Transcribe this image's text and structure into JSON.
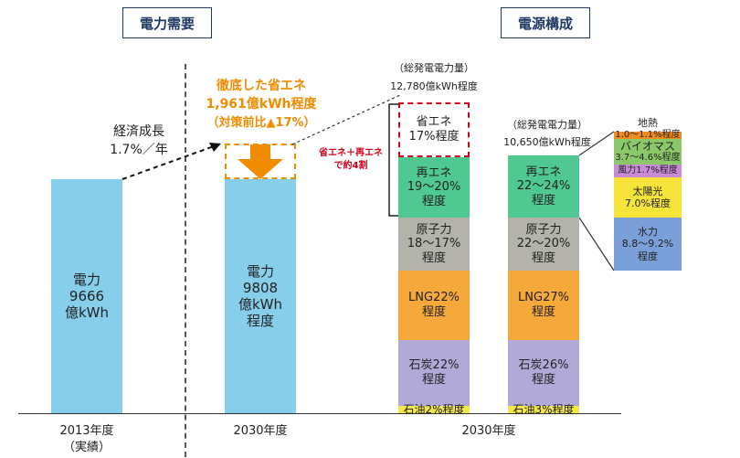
{
  "headers": {
    "demand": "電力需要",
    "supply": "電源構成"
  },
  "demand": {
    "growth_line1": "経済成長",
    "growth_line2": "1.7%／年",
    "bar2013": [
      "電力",
      "9666",
      "億kWh"
    ],
    "bar2030": [
      "電力",
      "9808",
      "億kWh",
      "程度"
    ],
    "savings_line1": "徹底した省エネ",
    "savings_line2": "1,961億kWh程度",
    "savings_line3": "（対策前比▲17%）",
    "colors": {
      "bar": "#87ceeb",
      "savings": "#f08c00"
    }
  },
  "supply": {
    "total_before_label": "（総発電電力量）",
    "total_before_value": "12,780億kWh程度",
    "total_after_label": "（総発電電力量）",
    "total_after_value": "10,650億kWh程度",
    "renewables_saving_line1": "省エネ＋再エネ",
    "renewables_saving_line2": "で約4割",
    "stack_before": [
      {
        "key": "savings",
        "lines": [
          "省エネ",
          "17%程度"
        ]
      },
      {
        "key": "renewable",
        "lines": [
          "再エネ",
          "19～20%",
          "程度"
        ]
      },
      {
        "key": "nuclear",
        "lines": [
          "原子力",
          "18～17%",
          "程度"
        ]
      },
      {
        "key": "lng",
        "lines": [
          "LNG22%",
          "程度"
        ]
      },
      {
        "key": "coal",
        "lines": [
          "石炭22%",
          "程度"
        ]
      },
      {
        "key": "oil",
        "lines": [
          "石油2%程度"
        ]
      }
    ],
    "stack_after": [
      {
        "key": "renewable",
        "lines": [
          "再エネ",
          "22～24%",
          "程度"
        ]
      },
      {
        "key": "nuclear",
        "lines": [
          "原子力",
          "22～20%",
          "程度"
        ]
      },
      {
        "key": "lng",
        "lines": [
          "LNG27%",
          "程度"
        ]
      },
      {
        "key": "coal",
        "lines": [
          "石炭26%",
          "程度"
        ]
      },
      {
        "key": "oil",
        "lines": [
          "石油3%程度"
        ]
      }
    ],
    "renewable_breakdown": [
      {
        "key": "geothermal",
        "lines": [
          "地熱",
          "1.0～1.1%程度"
        ]
      },
      {
        "key": "biomass",
        "lines": [
          "バイオマス",
          "3.7～4.6%程度"
        ]
      },
      {
        "key": "wind",
        "lines": [
          "風力1.7%程度"
        ]
      },
      {
        "key": "solar",
        "lines": [
          "太陽光",
          "7.0%程度"
        ]
      },
      {
        "key": "hydro",
        "lines": [
          "水力",
          "8.8～9.2%",
          "程度"
        ]
      }
    ],
    "colors": {
      "renewable": "#4fc991",
      "nuclear": "#b3b3ab",
      "lng": "#f5a93a",
      "coal": "#b1a9d8",
      "oil": "#f2e84b",
      "savings_border": "#d0021b",
      "geothermal": "#f08c1e",
      "biomass": "#8bc86a",
      "wind": "#c98bd8",
      "solar": "#f7e43a",
      "hydro": "#7b9fd8"
    }
  },
  "axis": {
    "x_labels": [
      {
        "lines": [
          "2013年度",
          "（実績）"
        ]
      },
      {
        "lines": [
          "2030年度"
        ]
      },
      {
        "lines": [
          "2030年度"
        ]
      }
    ]
  },
  "chart_data": {
    "type": "bar",
    "title": "",
    "categories": [
      "2013年度",
      "2030年度"
    ],
    "series": [
      {
        "name": "電力",
        "values": [
          9666,
          9808
        ]
      }
    ],
    "ylabel": "",
    "ylim": [
      0,
      12780
    ]
  }
}
